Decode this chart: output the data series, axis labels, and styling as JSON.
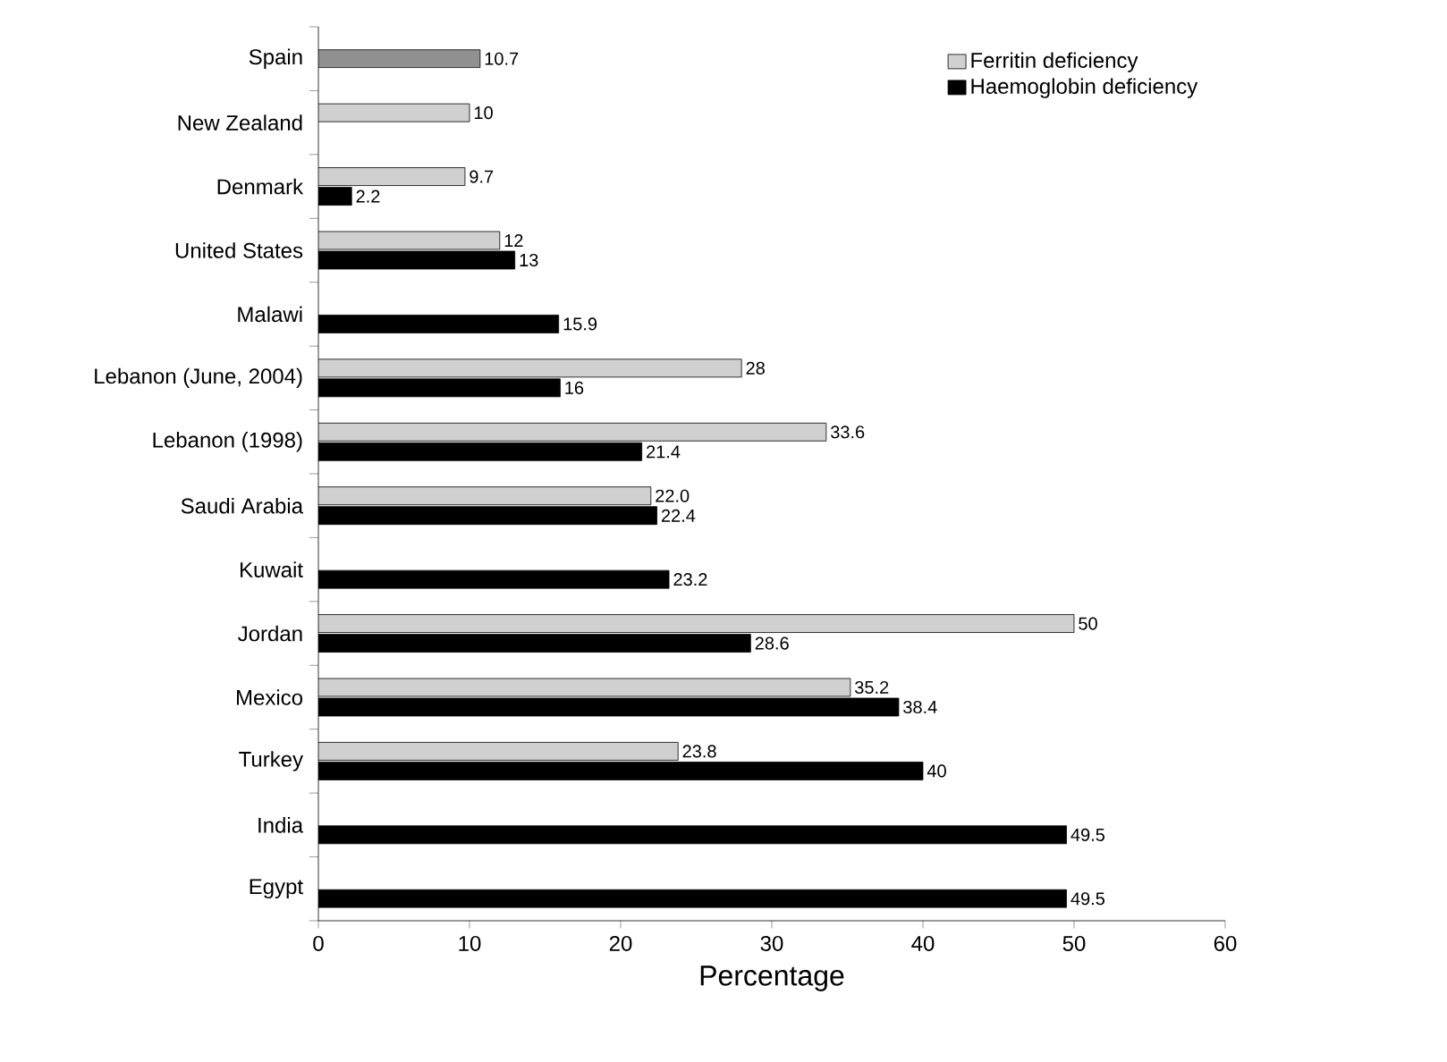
{
  "chart_data": {
    "type": "bar",
    "orientation": "horizontal",
    "xlabel": "Percentage",
    "categories": [
      "Spain",
      "New Zealand",
      "Denmark",
      "United States",
      "Malawi",
      "Lebanon (June, 2004)",
      "Lebanon (1998)",
      "Saudi Arabia",
      "Kuwait",
      "Jordan",
      "Mexico",
      "Turkey",
      "India",
      "Egypt"
    ],
    "series": [
      {
        "name": "Ferritin deficiency",
        "color": "#d0d0d0",
        "values": [
          null,
          10,
          9.7,
          12,
          null,
          28,
          33.6,
          22.0,
          null,
          50,
          35.2,
          23.8,
          null,
          null
        ],
        "value_labels": [
          null,
          "10",
          "9.7",
          "12",
          null,
          "28",
          "33.6",
          "22.0",
          null,
          "50",
          "35.2",
          "23.8",
          null,
          null
        ]
      },
      {
        "name": "Haemoglobin deficiency",
        "color": "#000000",
        "values": [
          null,
          null,
          2.2,
          13,
          15.9,
          16,
          21.4,
          22.4,
          23.2,
          28.6,
          38.4,
          40,
          49.5,
          49.5
        ],
        "value_labels": [
          null,
          null,
          "2.2",
          "13",
          "15.9",
          "16",
          "21.4",
          "22.4",
          "23.2",
          "28.6",
          "38.4",
          "40",
          "49.5",
          "49.5"
        ]
      },
      {
        "color": "#909090",
        "values": [
          10.7,
          null,
          null,
          null,
          null,
          null,
          null,
          null,
          null,
          null,
          null,
          null,
          null,
          null
        ],
        "value_labels": [
          "10.7",
          null,
          null,
          null,
          null,
          null,
          null,
          null,
          null,
          null,
          null,
          null,
          null,
          null
        ]
      }
    ],
    "xlim": [
      0,
      60
    ],
    "xticks": [
      0,
      10,
      20,
      30,
      40,
      50,
      60
    ],
    "grid": false,
    "legend": "top right"
  }
}
